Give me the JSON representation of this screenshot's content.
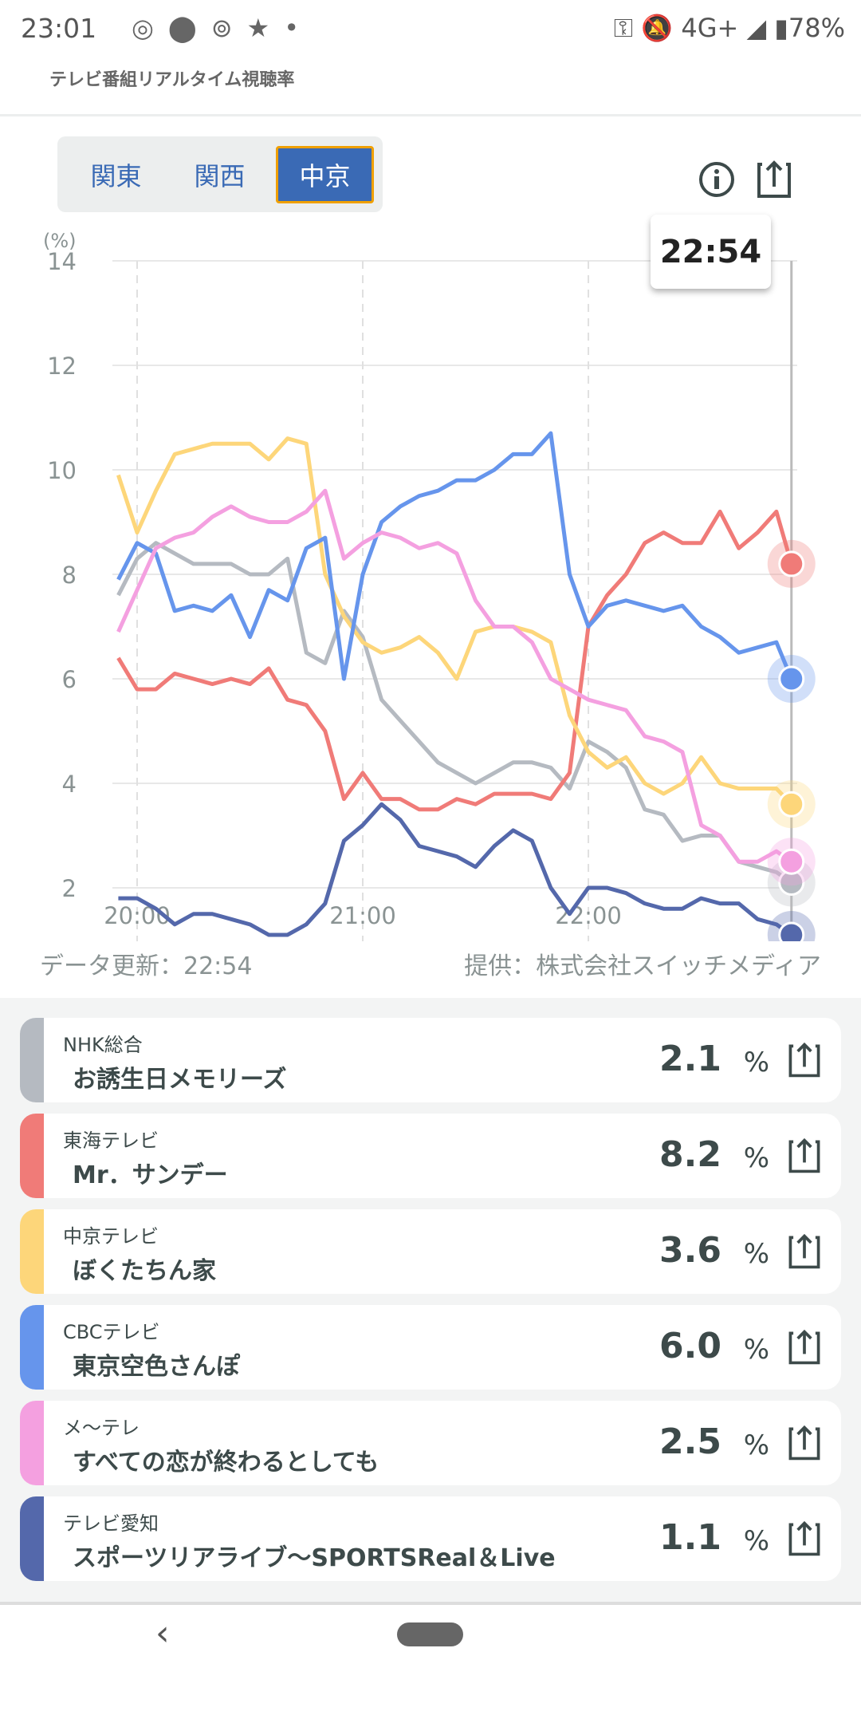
{
  "status_bar": {
    "time": "23:01",
    "left_icons": [
      "instagram-icon",
      "location-icon",
      "threads-icon",
      "star-icon",
      "dot-icon"
    ],
    "network": "4G+",
    "battery": "78%"
  },
  "header": {
    "subtitle": "テレビ番組リアルタイム視聴率"
  },
  "regions": [
    {
      "label": "関東",
      "active": false
    },
    {
      "label": "関西",
      "active": false
    },
    {
      "label": "中京",
      "active": true
    }
  ],
  "tooltip": {
    "time": "22:54"
  },
  "footer": {
    "updated": "データ更新：22:54",
    "provider": "提供：株式会社スイッチメディア"
  },
  "chart_data": {
    "type": "line",
    "ylabel": "(%)",
    "ylim": [
      0,
      14
    ],
    "yticks": [
      "0",
      "2",
      "4",
      "6",
      "8",
      "10",
      "12",
      "14"
    ],
    "xticks": [
      "20:00",
      "21:00",
      "22:00"
    ],
    "xlim_minutes_from_2000": [
      -5,
      174
    ],
    "x_minutes_from_2000": [
      -5,
      0,
      5,
      10,
      15,
      20,
      25,
      30,
      35,
      40,
      45,
      50,
      55,
      60,
      65,
      70,
      75,
      80,
      85,
      90,
      95,
      100,
      105,
      110,
      115,
      120,
      125,
      130,
      135,
      140,
      145,
      150,
      155,
      160,
      165,
      170,
      174
    ],
    "cursor_time": "22:54",
    "grid": true,
    "series": [
      {
        "name": "NHK総合",
        "color": "#b5bac1",
        "values": [
          7.6,
          8.3,
          8.6,
          8.4,
          8.2,
          8.2,
          8.2,
          8.0,
          8.0,
          8.3,
          6.5,
          6.3,
          7.3,
          6.8,
          5.6,
          5.2,
          4.8,
          4.4,
          4.2,
          4.0,
          4.2,
          4.4,
          4.4,
          4.3,
          3.9,
          4.8,
          4.6,
          4.3,
          3.5,
          3.4,
          2.9,
          3.0,
          3.0,
          2.5,
          2.4,
          2.3,
          2.1
        ]
      },
      {
        "name": "東海テレビ",
        "color": "#f07b78",
        "values": [
          6.4,
          5.8,
          5.8,
          6.1,
          6.0,
          5.9,
          6.0,
          5.9,
          6.2,
          5.6,
          5.5,
          5.0,
          3.7,
          4.2,
          3.7,
          3.7,
          3.5,
          3.5,
          3.7,
          3.6,
          3.8,
          3.8,
          3.8,
          3.7,
          4.2,
          7.0,
          7.6,
          8.0,
          8.6,
          8.8,
          8.6,
          8.6,
          9.2,
          8.5,
          8.8,
          9.2,
          8.2
        ]
      },
      {
        "name": "中京テレビ",
        "color": "#fdd67a",
        "values": [
          9.9,
          8.8,
          9.6,
          10.3,
          10.4,
          10.5,
          10.5,
          10.5,
          10.2,
          10.6,
          10.5,
          8.0,
          7.2,
          6.7,
          6.5,
          6.6,
          6.8,
          6.5,
          6.0,
          6.9,
          7.0,
          7.0,
          6.9,
          6.7,
          5.3,
          4.6,
          4.3,
          4.5,
          4.0,
          3.8,
          4.0,
          4.5,
          4.0,
          3.9,
          3.9,
          3.9,
          3.6
        ]
      },
      {
        "name": "CBCテレビ",
        "color": "#6695ec",
        "values": [
          7.9,
          8.6,
          8.4,
          7.3,
          7.4,
          7.3,
          7.6,
          6.8,
          7.7,
          7.5,
          8.5,
          8.7,
          6.0,
          8.0,
          9.0,
          9.3,
          9.5,
          9.6,
          9.8,
          9.8,
          10.0,
          10.3,
          10.3,
          10.7,
          8.0,
          7.0,
          7.4,
          7.5,
          7.4,
          7.3,
          7.4,
          7.0,
          6.8,
          6.5,
          6.6,
          6.7,
          6.0
        ]
      },
      {
        "name": "メ～テレ",
        "color": "#f4a0e0",
        "values": [
          6.9,
          7.7,
          8.5,
          8.7,
          8.8,
          9.1,
          9.3,
          9.1,
          9.0,
          9.0,
          9.2,
          9.6,
          8.3,
          8.6,
          8.8,
          8.7,
          8.5,
          8.6,
          8.4,
          7.5,
          7.0,
          7.0,
          6.7,
          6.0,
          5.8,
          5.6,
          5.5,
          5.4,
          4.9,
          4.8,
          4.6,
          3.2,
          3.0,
          2.5,
          2.5,
          2.7,
          2.5
        ]
      },
      {
        "name": "テレビ愛知",
        "color": "#5468ab",
        "values": [
          1.8,
          1.8,
          1.6,
          1.3,
          1.5,
          1.5,
          1.4,
          1.3,
          1.1,
          1.1,
          1.3,
          1.7,
          2.9,
          3.2,
          3.6,
          3.3,
          2.8,
          2.7,
          2.6,
          2.4,
          2.8,
          3.1,
          2.9,
          2.0,
          1.5,
          2.0,
          2.0,
          1.9,
          1.7,
          1.6,
          1.6,
          1.8,
          1.7,
          1.7,
          1.4,
          1.3,
          1.1
        ]
      }
    ]
  },
  "channels": [
    {
      "channel": "NHK総合",
      "program": "お誘生日メモリーズ",
      "value": "2.1",
      "unit": "%",
      "color": "#b5bac1"
    },
    {
      "channel": "東海テレビ",
      "program": "Mr．サンデー",
      "value": "8.2",
      "unit": "%",
      "color": "#f07b78"
    },
    {
      "channel": "中京テレビ",
      "program": "ぼくたちん家",
      "value": "3.6",
      "unit": "%",
      "color": "#fdd67a"
    },
    {
      "channel": "CBCテレビ",
      "program": "東京空色さんぽ",
      "value": "6.0",
      "unit": "%",
      "color": "#6695ec"
    },
    {
      "channel": "メ～テレ",
      "program": "すべての恋が終わるとしても",
      "value": "2.5",
      "unit": "%",
      "color": "#f4a0e0"
    },
    {
      "channel": "テレビ愛知",
      "program": "スポーツリアライブ～SPORTSReal＆Live",
      "value": "1.1",
      "unit": "%",
      "color": "#5468ab"
    }
  ]
}
